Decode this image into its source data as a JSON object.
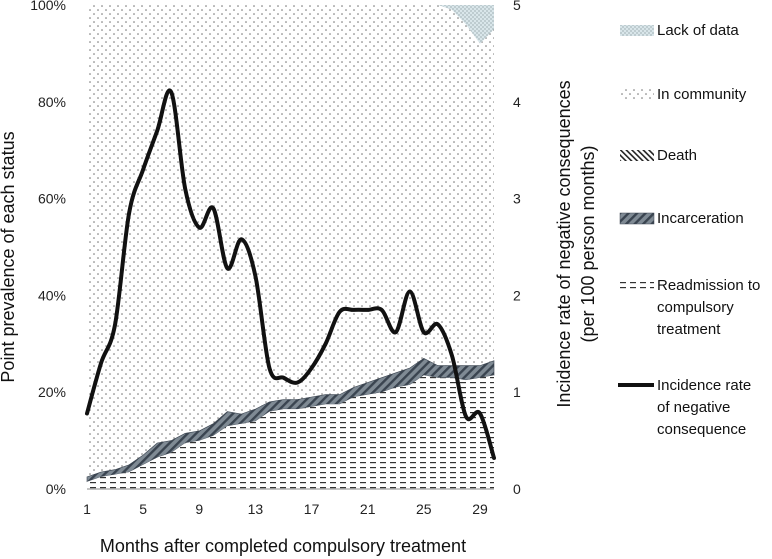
{
  "chart_data": {
    "type": "area",
    "x": [
      1,
      2,
      3,
      4,
      5,
      6,
      7,
      8,
      9,
      10,
      11,
      12,
      13,
      14,
      15,
      16,
      17,
      18,
      19,
      20,
      21,
      22,
      23,
      24,
      25,
      26,
      27,
      28,
      29,
      30
    ],
    "x_ticks": [
      "1",
      "5",
      "9",
      "13",
      "17",
      "21",
      "25",
      "29"
    ],
    "xlabel": "Months after completed compulsory treatment",
    "ylabel_left": "Point prevalence of each status",
    "ylabel_right_line1": "Incidence rate of negative consequences",
    "ylabel_right_line2": "(per 100 person months)",
    "left_ticks": [
      "0%",
      "20%",
      "40%",
      "60%",
      "80%",
      "100%"
    ],
    "right_ticks": [
      "0",
      "1",
      "2",
      "3",
      "4",
      "5"
    ],
    "ylim_left": [
      0,
      100
    ],
    "ylim_right": [
      0,
      5
    ],
    "series": [
      {
        "name": "Readmission to compulsory treatment",
        "axis": "left",
        "stack_order": 1,
        "values": [
          1.5,
          2.5,
          3,
          3.5,
          5,
          6.5,
          7.5,
          9.5,
          10,
          11,
          13,
          13.5,
          14,
          16,
          16.5,
          16.5,
          17,
          17.5,
          17.5,
          19,
          19.5,
          20,
          21,
          21.5,
          23.5,
          23,
          23,
          22.5,
          23,
          23.5
        ]
      },
      {
        "name": "Incarceration",
        "axis": "left",
        "stack_order": 2,
        "values": [
          1,
          1,
          1,
          1.5,
          2,
          3,
          2.5,
          2,
          2,
          2.5,
          3,
          2,
          2.5,
          2,
          2,
          2,
          2,
          2,
          2,
          2,
          2.5,
          3,
          3,
          3.5,
          3.5,
          2.5,
          2.5,
          3,
          2.5,
          3
        ]
      },
      {
        "name": "Death",
        "axis": "left",
        "stack_order": 3,
        "values": [
          0,
          0,
          0,
          0,
          0,
          0,
          0,
          0,
          0,
          0,
          0,
          0,
          0,
          0,
          0,
          0,
          0,
          0,
          0,
          0,
          0,
          0,
          0,
          0,
          0,
          0,
          0,
          0,
          0,
          0
        ]
      },
      {
        "name": "Lack of data",
        "axis": "left",
        "stack_order": 5,
        "values": [
          0,
          0,
          0,
          0,
          0,
          0,
          0,
          0,
          0,
          0,
          0,
          0,
          0,
          0,
          0,
          0,
          0,
          0,
          0,
          0,
          0,
          0,
          0,
          0,
          0,
          0,
          1,
          4,
          8,
          5
        ]
      },
      {
        "name": "In community",
        "axis": "left",
        "stack_order": 4,
        "fills_remainder": true,
        "values": [
          97.5,
          96.5,
          96,
          95,
          93,
          90.5,
          90,
          88.5,
          88,
          86.5,
          84,
          84.5,
          83.5,
          82,
          81.5,
          81.5,
          81,
          80.5,
          80.5,
          79,
          78,
          77,
          76,
          75,
          73,
          74.5,
          73.5,
          70.5,
          66.5,
          68.5
        ]
      },
      {
        "name": "Incidence rate of negative consequence",
        "axis": "right",
        "type": "line",
        "values": [
          0.78,
          1.3,
          1.7,
          2.85,
          3.3,
          3.7,
          4.1,
          3.1,
          2.7,
          2.9,
          2.28,
          2.58,
          2.2,
          1.25,
          1.15,
          1.1,
          1.25,
          1.5,
          1.83,
          1.85,
          1.85,
          1.85,
          1.62,
          2.04,
          1.62,
          1.7,
          1.38,
          0.75,
          0.78,
          0.32
        ]
      }
    ],
    "legend": [
      {
        "key": "lack",
        "label": [
          "Lack of data"
        ]
      },
      {
        "key": "community",
        "label": [
          "In community"
        ]
      },
      {
        "key": "death",
        "label": [
          "Death"
        ]
      },
      {
        "key": "incarceration",
        "label": [
          "Incarceration"
        ]
      },
      {
        "key": "readmission",
        "label": [
          "Readmission to",
          "compulsory",
          "treatment"
        ]
      },
      {
        "key": "line",
        "label": [
          "Incidence rate",
          "of negative",
          "consequence"
        ]
      }
    ],
    "legend_position": "right",
    "colors": {
      "line": "#111111",
      "dots": "#666666",
      "incarceration_fill": "#7f8a94",
      "incarceration_stripe": "#3a4450",
      "readmission_dash": "#333333",
      "lack_fill": "#d9e6ea",
      "lack_stripe": "#7a8a90",
      "axis": "#888888"
    }
  }
}
